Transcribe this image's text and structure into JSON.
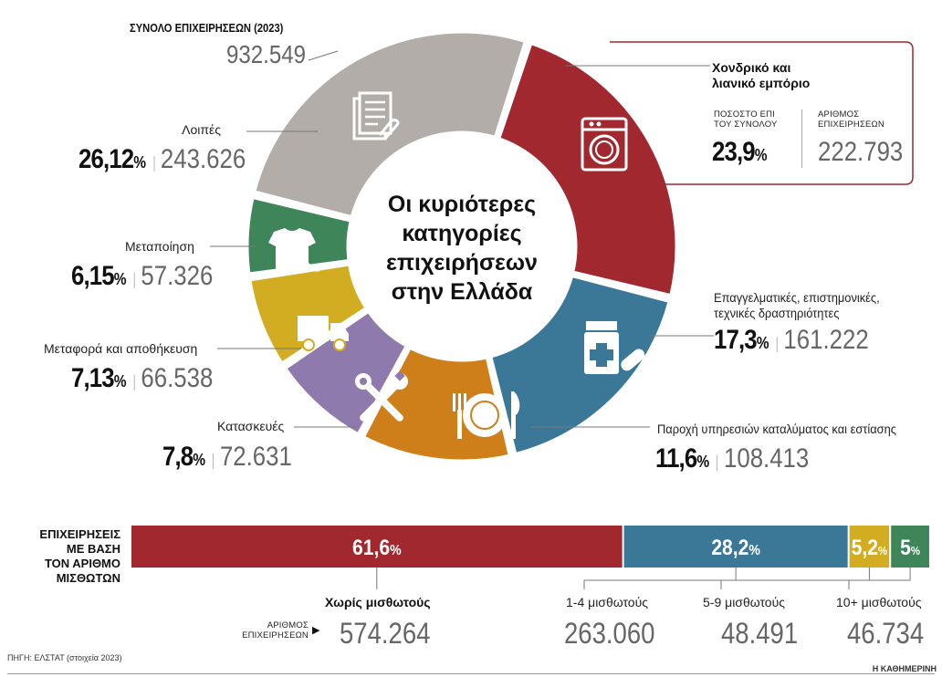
{
  "header": {
    "total_label": "ΣΥΝΟΛΟ ΕΠΙΧΕΙΡΗΣΕΩΝ (2023)",
    "total_value": "932.549"
  },
  "center_title": [
    "Οι κυριότερες",
    "κατηγορίες",
    "επιχειρήσεων",
    "στην Ελλάδα"
  ],
  "highlight_box": {
    "title_line1": "Χονδρικό και",
    "title_line2": "λιανικό εμπόριο",
    "pct_header_1": "ΠΟΣΟΣΤΟ ΕΠΙ",
    "pct_header_2": "ΤΟΥ ΣΥΝΟΛΟΥ",
    "count_header_1": "ΑΡΙΘΜΟΣ",
    "count_header_2": "ΕΠΙΧΕΙΡΗΣΕΩΝ",
    "pct": "23,9",
    "count": "222.793"
  },
  "labels": {
    "other": {
      "name": "Λοιπές",
      "pct": "26,12",
      "count": "243.626"
    },
    "manufacturing": {
      "name": "Μεταποίηση",
      "pct": "6,15",
      "count": "57.326"
    },
    "transport": {
      "name": "Μεταφορά και αποθήκευση",
      "pct": "7,13",
      "count": "66.538"
    },
    "construction": {
      "name": "Κατασκευές",
      "pct": "7,8",
      "count": "72.631"
    },
    "professional": {
      "name_line1": "Επαγγελματικές, επιστημονικές,",
      "name_line2": "τεχνικές δραστηριότητες",
      "pct": "17,3",
      "count": "161.222"
    },
    "hospitality": {
      "name": "Παροχή υπηρεσιών καταλύματος και εστίασης",
      "pct": "11,6",
      "count": "108.413"
    }
  },
  "percent_sign": "%",
  "bar_section": {
    "title": [
      "ΕΠΙΧΕΙΡΗΣΕΙΣ",
      "ΜΕ ΒΑΣΗ",
      "ΤΟΝ ΑΡΙΘΜΟ",
      "ΜΙΣΘΩΤΩΝ"
    ],
    "count_label_1": "ΑΡΙΘΜΟΣ",
    "count_label_2": "ΕΠΙΧΕΙΡΗΣΕΩΝ",
    "arrow": "▶"
  },
  "footer": {
    "source": "ΠΗΓΗ: ΕΛΣΤΑΤ (στοιχεία 2023)",
    "brand": "Η ΚΑΘΗΜΕΡΙΝΗ"
  },
  "colors": {
    "retail": "#a1282f",
    "professional": "#3b7898",
    "hospitality": "#cf7f19",
    "construction": "#8f7aad",
    "transport": "#d2ad22",
    "manufacturing": "#3e8659",
    "other": "#b3adaa"
  },
  "chart_data": [
    {
      "type": "pie",
      "title": "Οι κυριότερες κατηγορίες επιχειρήσεων στην Ελλάδα",
      "total": 932549,
      "slices": [
        {
          "name": "Χονδρικό και λιανικό εμπόριο",
          "pct": 23.9,
          "count": 222793,
          "color": "#a1282f",
          "icon": "washing-machine-icon"
        },
        {
          "name": "Επαγγελματικές, επιστημονικές, τεχνικές δραστηριότητες",
          "pct": 17.3,
          "count": 161222,
          "color": "#3b7898",
          "icon": "medicine-icon"
        },
        {
          "name": "Παροχή υπηρεσιών καταλύματος και εστίασης",
          "pct": 11.6,
          "count": 108413,
          "color": "#cf7f19",
          "icon": "plate-cutlery-icon"
        },
        {
          "name": "Κατασκευές",
          "pct": 7.8,
          "count": 72631,
          "color": "#8f7aad",
          "icon": "tools-icon"
        },
        {
          "name": "Μεταφορά και αποθήκευση",
          "pct": 7.13,
          "count": 66538,
          "color": "#d2ad22",
          "icon": "truck-icon"
        },
        {
          "name": "Μεταποίηση",
          "pct": 6.15,
          "count": 57326,
          "color": "#3e8659",
          "icon": "tshirt-hanger-icon"
        },
        {
          "name": "Λοιπές",
          "pct": 26.12,
          "count": 243626,
          "color": "#b3adaa",
          "icon": "documents-icon"
        }
      ]
    },
    {
      "type": "bar",
      "orientation": "horizontal-stacked",
      "title": "ΕΠΙΧΕΙΡΗΣΕΙΣ ΜΕ ΒΑΣΗ ΤΟΝ ΑΡΙΘΜΟ ΜΙΣΘΩΤΩΝ",
      "series": [
        {
          "name": "Χωρίς μισθωτούς",
          "pct_label": "61,6",
          "value": 61.6,
          "count": "574.264",
          "color": "#a1282f"
        },
        {
          "name": "1-4 μισθωτούς",
          "pct_label": "28,2",
          "value": 28.2,
          "count": "263.060",
          "color": "#3b7898"
        },
        {
          "name": "5-9 μισθωτούς",
          "pct_label": "5,2",
          "value": 5.2,
          "count": "48.491",
          "color": "#d2ad22"
        },
        {
          "name": "10+ μισθωτούς",
          "pct_label": "5",
          "value": 5,
          "count": "46.734",
          "color": "#3e8659"
        }
      ]
    }
  ]
}
